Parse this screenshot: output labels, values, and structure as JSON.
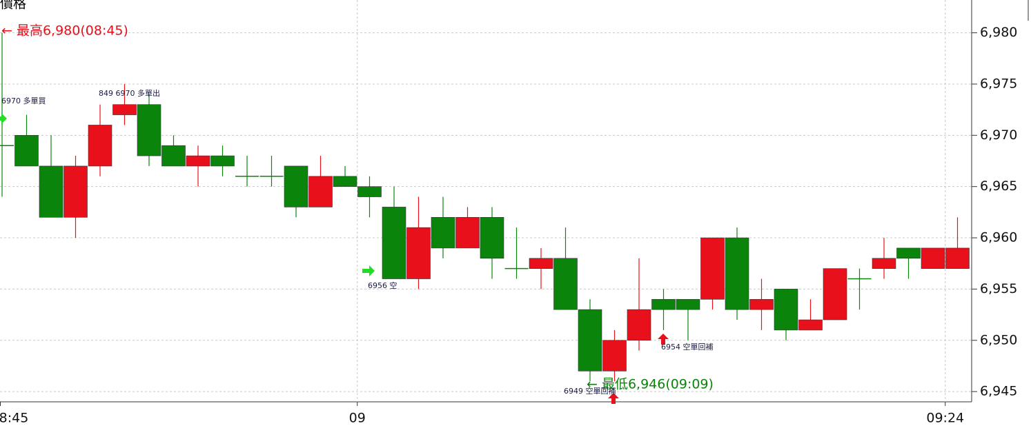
{
  "chart_data": {
    "type": "candlestick",
    "y_label": "價格",
    "categories": [
      "8:45",
      null,
      null,
      null,
      null,
      null,
      null,
      null,
      null,
      null,
      null,
      null,
      null,
      null,
      null,
      "09",
      null,
      null,
      null,
      null,
      null,
      null,
      null,
      null,
      null,
      null,
      null,
      null,
      null,
      null,
      null,
      null,
      null,
      null,
      null,
      null,
      null,
      null,
      null,
      "09:24"
    ],
    "open": [
      6969,
      6970,
      6967,
      6962,
      6967,
      6972,
      6973,
      6969,
      6967,
      6968,
      6966,
      6966,
      6967,
      6963,
      6966,
      6965,
      6963,
      6956,
      6962,
      6959,
      6962,
      6957,
      6957,
      6958,
      6953,
      6947,
      6950,
      6954,
      6954,
      6954,
      6960,
      6953,
      6955,
      6951,
      6952,
      6956,
      6957,
      6959,
      6957,
      6957
    ],
    "high": [
      6980,
      6972,
      6970,
      6968,
      6973,
      6975,
      6974,
      6970,
      6969,
      6969,
      6968,
      6968,
      6967,
      6968,
      6967,
      6966,
      6965,
      6964,
      6964,
      6963,
      6963,
      6961,
      6959,
      6961,
      6954,
      6951,
      6958,
      6955,
      6954,
      6960,
      6961,
      6956,
      6955,
      6954,
      6957,
      6957,
      6960,
      6959,
      6959,
      6962
    ],
    "low": [
      6964,
      6967,
      6962,
      6960,
      6966,
      6971,
      6967,
      6967,
      6965,
      6966,
      6965,
      6965,
      6962,
      6963,
      6965,
      6962,
      6956,
      6955,
      6958,
      6959,
      6956,
      6956,
      6955,
      6953,
      6946,
      6946,
      6949,
      6951,
      6950,
      6953,
      6952,
      6951,
      6950,
      6951,
      6952,
      6953,
      6956,
      6956,
      6957,
      6957
    ],
    "close": [
      6969,
      6967,
      6962,
      6967,
      6971,
      6973,
      6968,
      6967,
      6968,
      6967,
      6966,
      6966,
      6963,
      6966,
      6965,
      6964,
      6956,
      6961,
      6959,
      6962,
      6958,
      6957,
      6958,
      6953,
      6947,
      6950,
      6953,
      6953,
      6953,
      6960,
      6953,
      6954,
      6951,
      6952,
      6957,
      6956,
      6958,
      6958,
      6959,
      6959
    ],
    "up_color": "#e8101a",
    "down_color": "#0a840a",
    "flat_color": "#0a840a",
    "ylim": [
      6944,
      6983.2
    ],
    "yticks": [
      {
        "value": 6945,
        "label": "6,945"
      },
      {
        "value": 6950,
        "label": "6,950"
      },
      {
        "value": 6955,
        "label": "6,955"
      },
      {
        "value": 6960,
        "label": "6,960"
      },
      {
        "value": 6965,
        "label": "6,965"
      },
      {
        "value": 6970,
        "label": "6,970"
      },
      {
        "value": 6975,
        "label": "6,975"
      },
      {
        "value": 6980,
        "label": "6,980"
      }
    ],
    "grid": true,
    "annotations": [
      {
        "text": "← 最高6,980(08:45)",
        "color": "#e8101a"
      },
      {
        "text": "← 最低6,946(09:09)",
        "color": "#0a840a"
      },
      {
        "text": "6970 多單買",
        "color": "#1a1a40"
      },
      {
        "text": "849 6970 多單出",
        "color": "#1a1a40"
      },
      {
        "text": "6956 空",
        "color": "#1a1a40"
      },
      {
        "text": "6949 空單回補",
        "color": "#1a1a40"
      },
      {
        "text": "6954 空單回補",
        "color": "#1a1a40"
      }
    ]
  }
}
